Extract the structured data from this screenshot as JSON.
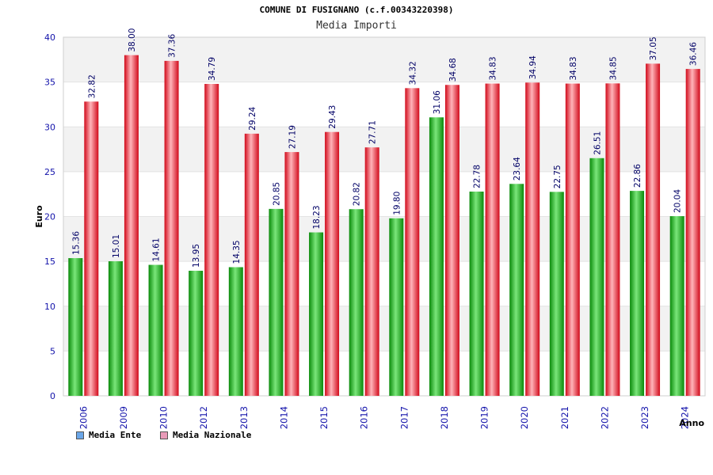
{
  "header": {
    "title": "COMUNE DI FUSIGNANO (c.f.00343220398)",
    "subtitle": "Media Importi"
  },
  "legend": {
    "ente_label": "Media Ente",
    "nazionale_label": "Media Nazionale",
    "ente_color": "#6aa6e8",
    "nazionale_color": "#e89ab8"
  },
  "colors": {
    "ente_bar": "#11b511",
    "nazionale_bar": "#ee1c2c",
    "axis_labels": "#1111aa",
    "band": "#f2f2f2"
  },
  "chart_data": {
    "type": "bar",
    "title": "COMUNE DI FUSIGNANO (c.f.00343220398)",
    "subtitle": "Media Importi",
    "xlabel": "Anno",
    "ylabel": "Euro",
    "ylim": [
      0,
      40
    ],
    "yticks": [
      0,
      5,
      10,
      15,
      20,
      25,
      30,
      35,
      40
    ],
    "categories": [
      "2006",
      "2009",
      "2010",
      "2012",
      "2013",
      "2014",
      "2015",
      "2016",
      "2017",
      "2018",
      "2019",
      "2020",
      "2021",
      "2022",
      "2023",
      "2024"
    ],
    "series": [
      {
        "name": "Media Ente",
        "values": [
          15.36,
          15.01,
          14.61,
          13.95,
          14.35,
          20.85,
          18.23,
          20.82,
          19.8,
          31.06,
          22.78,
          23.64,
          22.75,
          26.51,
          22.86,
          20.04
        ],
        "labels": [
          "15.36",
          "15.01",
          "14.61",
          "13.95",
          "14.35",
          "20.85",
          "18.23",
          "20.82",
          "19.80",
          "31.06",
          "22.78",
          "23.64",
          "22.75",
          "26.51",
          "22.86",
          "20.04"
        ]
      },
      {
        "name": "Media Nazionale",
        "values": [
          32.82,
          38.0,
          37.36,
          34.79,
          29.24,
          27.19,
          29.43,
          27.71,
          34.32,
          34.68,
          34.83,
          34.94,
          34.83,
          34.85,
          37.05,
          36.46
        ],
        "labels": [
          "32.82",
          "38.00",
          "37.36",
          "34.79",
          "29.24",
          "27.19",
          "29.43",
          "27.71",
          "34.32",
          "34.68",
          "34.83",
          "34.94",
          "34.83",
          "34.85",
          "37.05",
          "36.46"
        ]
      }
    ],
    "grid": true,
    "legend_position": "bottom-left"
  }
}
